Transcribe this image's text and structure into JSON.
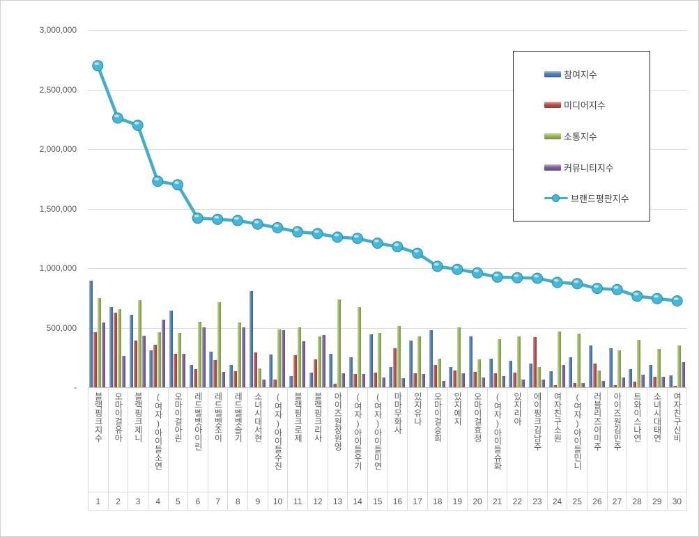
{
  "chart_data": {
    "type": "bar",
    "note": "combo chart: 4 bar series + 1 line series",
    "title": "",
    "xlabel": "",
    "ylabel": "",
    "ylim": [
      0,
      3000000
    ],
    "grid": true,
    "legend_position": "top-right",
    "yticks": [
      {
        "label": "3,000,000",
        "value": 3000000
      },
      {
        "label": "2,500,000",
        "value": 2500000
      },
      {
        "label": "2,000,000",
        "value": 2000000
      },
      {
        "label": "1,500,000",
        "value": 1500000
      },
      {
        "label": "1,000,000",
        "value": 1000000
      },
      {
        "label": "500,000",
        "value": 500000
      },
      {
        "label": "-",
        "value": 0
      }
    ],
    "categories": [
      "블랙핑크지수",
      "오마이걸유아",
      "블랙핑크제니",
      "(여자)아이들소연",
      "오마이걸아린",
      "레드벨벳아이린",
      "레드벨벳조이",
      "레드벨벳슬기",
      "소녀시대서현",
      "(여자)아이들수진",
      "블랙핑크로제",
      "블랙핑크리사",
      "아이즈원장원영",
      "(여자)아이들우기",
      "(여자)아이들미연",
      "마마무화사",
      "있지유나",
      "오마이걸승희",
      "있지예지",
      "오마이걸효정",
      "(여자)아이들슈화",
      "있지리아",
      "에이핑크김남주",
      "여자친구소원",
      "(여자)아이들민니",
      "러블리즈이미주",
      "아이즈원김민주",
      "트와이스나연",
      "소녀시대태연",
      "여자친구신비"
    ],
    "ranks": [
      "1",
      "2",
      "3",
      "4",
      "5",
      "6",
      "7",
      "8",
      "9",
      "10",
      "11",
      "12",
      "13",
      "14",
      "15",
      "16",
      "17",
      "18",
      "19",
      "20",
      "21",
      "22",
      "23",
      "24",
      "25",
      "26",
      "27",
      "28",
      "29",
      "30"
    ],
    "series": [
      {
        "name": "참여지수",
        "key": "participation",
        "type": "bar",
        "color": "#4F81BD",
        "values": [
          895000,
          675000,
          610000,
          310000,
          645000,
          185000,
          300000,
          190000,
          810000,
          275000,
          95000,
          125000,
          280000,
          250000,
          445000,
          170000,
          395000,
          480000,
          170000,
          430000,
          240000,
          220000,
          200000,
          135000,
          250000,
          350000,
          330000,
          155000,
          190000,
          100000
        ]
      },
      {
        "name": "미디어지수",
        "key": "media",
        "type": "bar",
        "color": "#C0504D",
        "values": [
          460000,
          625000,
          390000,
          355000,
          280000,
          150000,
          230000,
          135000,
          290000,
          65000,
          270000,
          235000,
          30000,
          110000,
          125000,
          330000,
          115000,
          185000,
          140000,
          130000,
          115000,
          125000,
          420000,
          15000,
          35000,
          200000,
          15000,
          45000,
          90000,
          10000
        ]
      },
      {
        "name": "소통지수",
        "key": "communication",
        "type": "bar",
        "color": "#9BBB59",
        "values": [
          750000,
          655000,
          730000,
          465000,
          455000,
          550000,
          715000,
          545000,
          160000,
          485000,
          505000,
          430000,
          735000,
          670000,
          455000,
          515000,
          430000,
          240000,
          505000,
          235000,
          405000,
          430000,
          170000,
          470000,
          450000,
          140000,
          310000,
          400000,
          320000,
          350000
        ]
      },
      {
        "name": "커뮤니티지수",
        "key": "community",
        "type": "bar",
        "color": "#8064A2",
        "values": [
          545000,
          265000,
          435000,
          565000,
          280000,
          505000,
          130000,
          505000,
          65000,
          480000,
          385000,
          440000,
          120000,
          110000,
          85000,
          75000,
          110000,
          50000,
          120000,
          85000,
          95000,
          65000,
          65000,
          185000,
          35000,
          55000,
          85000,
          105000,
          90000,
          210000
        ]
      },
      {
        "name": "브랜드평판지수",
        "key": "brand-reputation",
        "type": "line",
        "color": "#41AECB",
        "marker_fill": "#45B8D9",
        "marker_stroke": "#2C89A0",
        "values": [
          2700000,
          2260000,
          2200000,
          1730000,
          1700000,
          1420000,
          1410000,
          1400000,
          1370000,
          1340000,
          1305000,
          1290000,
          1260000,
          1250000,
          1210000,
          1180000,
          1125000,
          1015000,
          990000,
          960000,
          925000,
          920000,
          915000,
          880000,
          870000,
          830000,
          820000,
          765000,
          745000,
          725000
        ]
      }
    ]
  }
}
